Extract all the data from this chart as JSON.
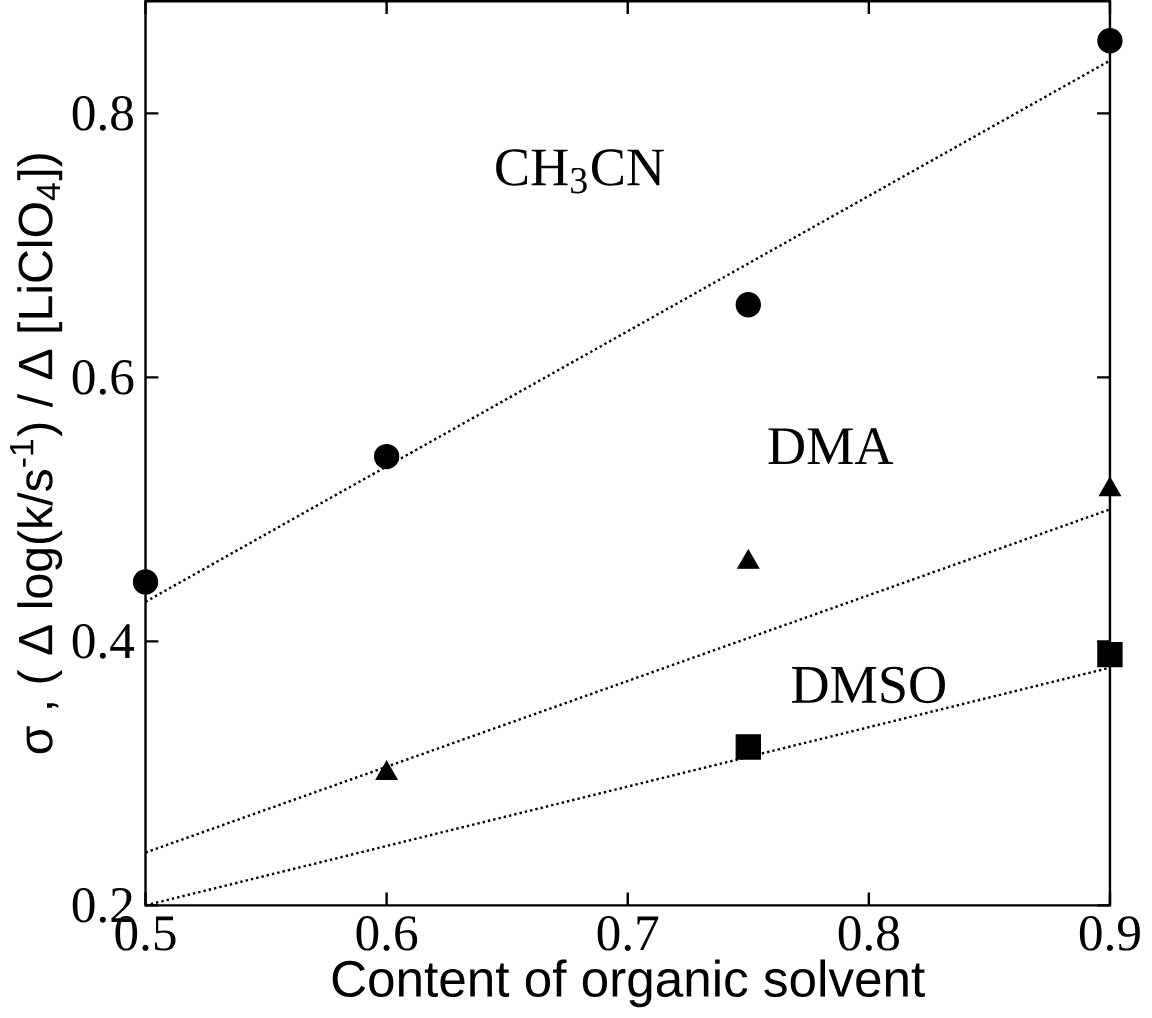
{
  "chart_data": {
    "type": "scatter",
    "xlabel": "Content of organic solvent",
    "ylabel": "σ , ( Δ log(k/s$^{-1}$) / Δ [LiClO$_{4}$])",
    "xlim": [
      0.5,
      0.9
    ],
    "ylim": [
      0.2,
      0.885
    ],
    "xticks": [
      0.5,
      0.6,
      0.7,
      0.8,
      0.9
    ],
    "yticks": [
      0.2,
      0.4,
      0.6,
      0.8
    ],
    "grid": false,
    "series": [
      {
        "marker": "circle",
        "color": "#000000",
        "x": [
          0.5,
          0.6,
          0.75,
          0.9
        ],
        "values": [
          0.445,
          0.54,
          0.655,
          0.855
        ]
      },
      {
        "marker": "triangle",
        "color": "#000000",
        "x": [
          0.6,
          0.75,
          0.9
        ],
        "values": [
          0.3,
          0.46,
          0.515
        ]
      },
      {
        "marker": "square",
        "color": "#000000",
        "x": [
          0.75,
          0.9
        ],
        "values": [
          0.32,
          0.39
        ]
      },
      {
        "name": "CH$_{3}$CN",
        "type": "line",
        "line_style": "dotted",
        "marker": "none",
        "color": "#000000",
        "x": [
          0.5,
          0.9
        ],
        "values": [
          0.43,
          0.84
        ]
      },
      {
        "name": "DMA",
        "type": "line",
        "line_style": "dotted",
        "marker": "none",
        "color": "#000000",
        "x": [
          0.5,
          0.9
        ],
        "values": [
          0.24,
          0.5
        ]
      },
      {
        "name": "DMSO",
        "type": "line",
        "line_style": "dotted",
        "marker": "none",
        "color": "#000000",
        "x": [
          0.5,
          0.9
        ],
        "values": [
          0.2,
          0.38
        ]
      }
    ]
  }
}
